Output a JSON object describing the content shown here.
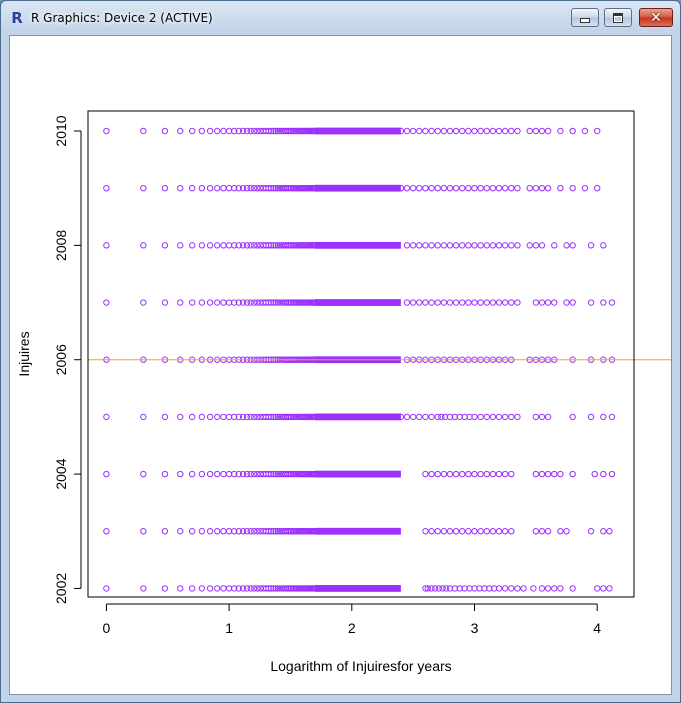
{
  "window": {
    "title": "R Graphics: Device 2 (ACTIVE)",
    "app_icon": "R",
    "controls": {
      "minimize": "minimize-icon",
      "maximize": "maximize-icon",
      "close": "close-icon"
    },
    "close_glyph": "✕"
  },
  "chart_data": {
    "type": "scatter",
    "xlabel": "Logarithm of Injuiresfor years",
    "ylabel": "Injuires",
    "xlim": [
      -0.15,
      4.3
    ],
    "ylim": [
      2001.85,
      2010.35
    ],
    "x_ticks": [
      0,
      1,
      2,
      3,
      4
    ],
    "x_tick_labels": [
      "0",
      "1",
      "2",
      "3",
      "4"
    ],
    "y_ticks": [
      2002,
      2004,
      2006,
      2008,
      2010
    ],
    "y_tick_labels": [
      "2002",
      "2004",
      "2006",
      "2008",
      "2010"
    ],
    "point_color": "#9b30ff",
    "reference_line": {
      "type": "horizontal",
      "y": 2006,
      "color": "#ffa500"
    },
    "grid": false,
    "series": [
      {
        "y": 2002,
        "x": [
          0,
          0.301,
          0.477,
          0.602,
          0.699,
          0.778,
          0.845,
          0.903,
          0.954,
          1.0,
          1.041,
          1.079,
          1.114,
          1.146,
          1.176,
          1.204,
          1.23,
          1.255,
          1.279,
          1.301,
          1.322,
          1.342,
          1.362,
          1.38,
          1.398,
          1.415,
          1.431,
          1.447,
          1.462,
          1.477,
          1.491,
          1.505,
          1.519,
          1.531,
          1.544,
          1.556,
          1.568,
          1.58,
          1.591,
          1.602,
          1.613,
          1.623,
          1.633,
          1.643,
          1.653,
          1.663,
          1.672,
          1.681,
          1.69,
          1.699,
          2.6,
          2.62,
          2.65,
          2.68,
          2.71,
          2.74,
          2.77,
          2.8,
          2.84,
          2.88,
          2.92,
          2.96,
          3.0,
          3.04,
          3.08,
          3.12,
          3.16,
          3.2,
          3.25,
          3.3,
          3.35,
          3.4,
          3.48,
          3.55,
          3.6,
          3.65,
          3.7,
          3.8,
          4.0,
          4.05,
          4.1
        ]
      },
      {
        "y": 2003,
        "x": [
          0,
          0.301,
          0.477,
          0.602,
          0.699,
          0.778,
          0.845,
          0.903,
          0.954,
          1.0,
          1.041,
          1.079,
          1.114,
          1.146,
          1.176,
          1.204,
          1.23,
          1.255,
          1.279,
          1.301,
          1.322,
          1.342,
          1.362,
          1.38,
          1.398,
          1.415,
          1.431,
          1.447,
          1.462,
          1.477,
          1.491,
          1.505,
          1.519,
          1.531,
          1.544,
          1.556,
          1.568,
          1.58,
          1.591,
          1.602,
          1.613,
          1.623,
          1.633,
          1.643,
          1.653,
          1.663,
          1.672,
          1.681,
          1.69,
          1.699,
          2.6,
          2.65,
          2.7,
          2.75,
          2.8,
          2.85,
          2.9,
          2.95,
          3.0,
          3.05,
          3.1,
          3.15,
          3.2,
          3.25,
          3.3,
          3.5,
          3.55,
          3.6,
          3.7,
          3.75,
          3.95,
          4.05,
          4.1
        ]
      },
      {
        "y": 2004,
        "x": [
          0,
          0.301,
          0.477,
          0.602,
          0.699,
          0.778,
          0.845,
          0.903,
          0.954,
          1.0,
          1.041,
          1.079,
          1.114,
          1.146,
          1.176,
          1.204,
          1.23,
          1.255,
          1.279,
          1.301,
          1.322,
          1.342,
          1.362,
          1.38,
          1.398,
          1.415,
          1.431,
          1.447,
          1.462,
          1.477,
          1.491,
          1.505,
          1.519,
          1.531,
          1.544,
          1.556,
          1.568,
          1.58,
          1.591,
          1.602,
          1.613,
          1.623,
          1.633,
          1.643,
          1.653,
          1.663,
          1.672,
          1.681,
          1.69,
          1.699,
          2.6,
          2.65,
          2.7,
          2.75,
          2.8,
          2.85,
          2.9,
          2.95,
          3.0,
          3.05,
          3.1,
          3.15,
          3.2,
          3.25,
          3.3,
          3.5,
          3.55,
          3.6,
          3.65,
          3.7,
          3.8,
          3.98,
          4.05,
          4.12
        ]
      },
      {
        "y": 2005,
        "x": [
          0,
          0.301,
          0.477,
          0.602,
          0.699,
          0.778,
          0.845,
          0.903,
          0.954,
          1.0,
          1.041,
          1.079,
          1.114,
          1.146,
          1.176,
          1.204,
          1.23,
          1.255,
          1.279,
          1.301,
          1.322,
          1.342,
          1.362,
          1.38,
          1.398,
          1.415,
          1.431,
          1.447,
          1.462,
          1.477,
          1.491,
          1.505,
          1.519,
          1.531,
          1.544,
          1.556,
          1.568,
          1.58,
          1.591,
          1.602,
          1.613,
          1.623,
          1.633,
          1.643,
          1.653,
          1.663,
          1.672,
          1.681,
          1.69,
          1.699,
          2.4,
          2.45,
          2.5,
          2.55,
          2.6,
          2.65,
          2.7,
          2.73,
          2.76,
          2.8,
          2.84,
          2.88,
          2.92,
          2.96,
          3.0,
          3.05,
          3.1,
          3.15,
          3.2,
          3.25,
          3.3,
          3.35,
          3.5,
          3.55,
          3.6,
          3.8,
          3.95,
          4.05,
          4.12
        ]
      },
      {
        "y": 2006,
        "x": [
          0,
          0.301,
          0.477,
          0.602,
          0.699,
          0.778,
          0.845,
          0.903,
          0.954,
          1.0,
          1.041,
          1.079,
          1.114,
          1.146,
          1.176,
          1.204,
          1.23,
          1.255,
          1.279,
          1.301,
          1.322,
          1.342,
          1.362,
          1.38,
          1.398,
          1.415,
          1.431,
          1.447,
          1.462,
          1.477,
          1.491,
          1.505,
          1.519,
          1.531,
          1.544,
          1.556,
          1.568,
          1.58,
          1.591,
          1.602,
          1.613,
          1.623,
          1.633,
          1.643,
          1.653,
          1.663,
          1.672,
          1.681,
          1.69,
          1.699,
          2.45,
          2.5,
          2.55,
          2.6,
          2.65,
          2.7,
          2.75,
          2.8,
          2.85,
          2.9,
          2.95,
          3.0,
          3.05,
          3.1,
          3.15,
          3.2,
          3.25,
          3.3,
          3.45,
          3.5,
          3.55,
          3.6,
          3.65,
          3.8,
          3.95,
          4.05,
          4.12
        ]
      },
      {
        "y": 2007,
        "x": [
          0,
          0.301,
          0.477,
          0.602,
          0.699,
          0.778,
          0.845,
          0.903,
          0.954,
          1.0,
          1.041,
          1.079,
          1.114,
          1.146,
          1.176,
          1.204,
          1.23,
          1.255,
          1.279,
          1.301,
          1.322,
          1.342,
          1.362,
          1.38,
          1.398,
          1.415,
          1.431,
          1.447,
          1.462,
          1.477,
          1.491,
          1.505,
          1.519,
          1.531,
          1.544,
          1.556,
          1.568,
          1.58,
          1.591,
          1.602,
          1.613,
          1.623,
          1.633,
          1.643,
          1.653,
          1.663,
          1.672,
          1.681,
          1.69,
          1.699,
          2.45,
          2.5,
          2.55,
          2.6,
          2.65,
          2.7,
          2.75,
          2.8,
          2.85,
          2.9,
          2.95,
          3.0,
          3.05,
          3.1,
          3.15,
          3.2,
          3.25,
          3.3,
          3.35,
          3.5,
          3.55,
          3.6,
          3.65,
          3.75,
          3.8,
          3.95,
          4.05,
          4.12
        ]
      },
      {
        "y": 2008,
        "x": [
          0,
          0.301,
          0.477,
          0.602,
          0.699,
          0.778,
          0.845,
          0.903,
          0.954,
          1.0,
          1.041,
          1.079,
          1.114,
          1.146,
          1.176,
          1.204,
          1.23,
          1.255,
          1.279,
          1.301,
          1.322,
          1.342,
          1.362,
          1.38,
          1.398,
          1.415,
          1.431,
          1.447,
          1.462,
          1.477,
          1.491,
          1.505,
          1.519,
          1.531,
          1.544,
          1.556,
          1.568,
          1.58,
          1.591,
          1.602,
          1.613,
          1.623,
          1.633,
          1.643,
          1.653,
          1.663,
          1.672,
          1.681,
          1.69,
          1.699,
          2.45,
          2.5,
          2.55,
          2.6,
          2.65,
          2.7,
          2.75,
          2.8,
          2.85,
          2.9,
          2.95,
          3.0,
          3.05,
          3.1,
          3.15,
          3.2,
          3.25,
          3.3,
          3.35,
          3.45,
          3.5,
          3.55,
          3.65,
          3.75,
          3.8,
          3.95,
          4.05
        ]
      },
      {
        "y": 2009,
        "x": [
          0,
          0.301,
          0.477,
          0.602,
          0.699,
          0.778,
          0.845,
          0.903,
          0.954,
          1.0,
          1.041,
          1.079,
          1.114,
          1.146,
          1.176,
          1.204,
          1.23,
          1.255,
          1.279,
          1.301,
          1.322,
          1.342,
          1.362,
          1.38,
          1.398,
          1.415,
          1.431,
          1.447,
          1.462,
          1.477,
          1.491,
          1.505,
          1.519,
          1.531,
          1.544,
          1.556,
          1.568,
          1.58,
          1.591,
          1.602,
          1.613,
          1.623,
          1.633,
          1.643,
          1.653,
          1.663,
          1.672,
          1.681,
          1.69,
          1.699,
          2.4,
          2.45,
          2.5,
          2.55,
          2.6,
          2.65,
          2.7,
          2.75,
          2.8,
          2.85,
          2.9,
          2.95,
          3.0,
          3.05,
          3.1,
          3.15,
          3.2,
          3.25,
          3.3,
          3.35,
          3.45,
          3.5,
          3.55,
          3.6,
          3.7,
          3.8,
          3.9,
          4.0
        ]
      },
      {
        "y": 2010,
        "x": [
          0,
          0.301,
          0.477,
          0.602,
          0.699,
          0.778,
          0.845,
          0.903,
          0.954,
          1.0,
          1.041,
          1.079,
          1.114,
          1.146,
          1.176,
          1.204,
          1.23,
          1.255,
          1.279,
          1.301,
          1.322,
          1.342,
          1.362,
          1.38,
          1.398,
          1.415,
          1.431,
          1.447,
          1.462,
          1.477,
          1.491,
          1.505,
          1.519,
          1.531,
          1.544,
          1.556,
          1.568,
          1.58,
          1.591,
          1.602,
          1.613,
          1.623,
          1.633,
          1.643,
          1.653,
          1.663,
          1.672,
          1.681,
          1.69,
          1.699,
          2.4,
          2.45,
          2.5,
          2.55,
          2.6,
          2.65,
          2.7,
          2.75,
          2.8,
          2.85,
          2.9,
          2.95,
          3.0,
          3.05,
          3.1,
          3.15,
          3.2,
          3.25,
          3.3,
          3.35,
          3.45,
          3.5,
          3.55,
          3.6,
          3.7,
          3.8,
          3.9,
          4.0
        ]
      }
    ],
    "dense_band": {
      "x_from": 1.699,
      "x_to": 2.4
    }
  }
}
